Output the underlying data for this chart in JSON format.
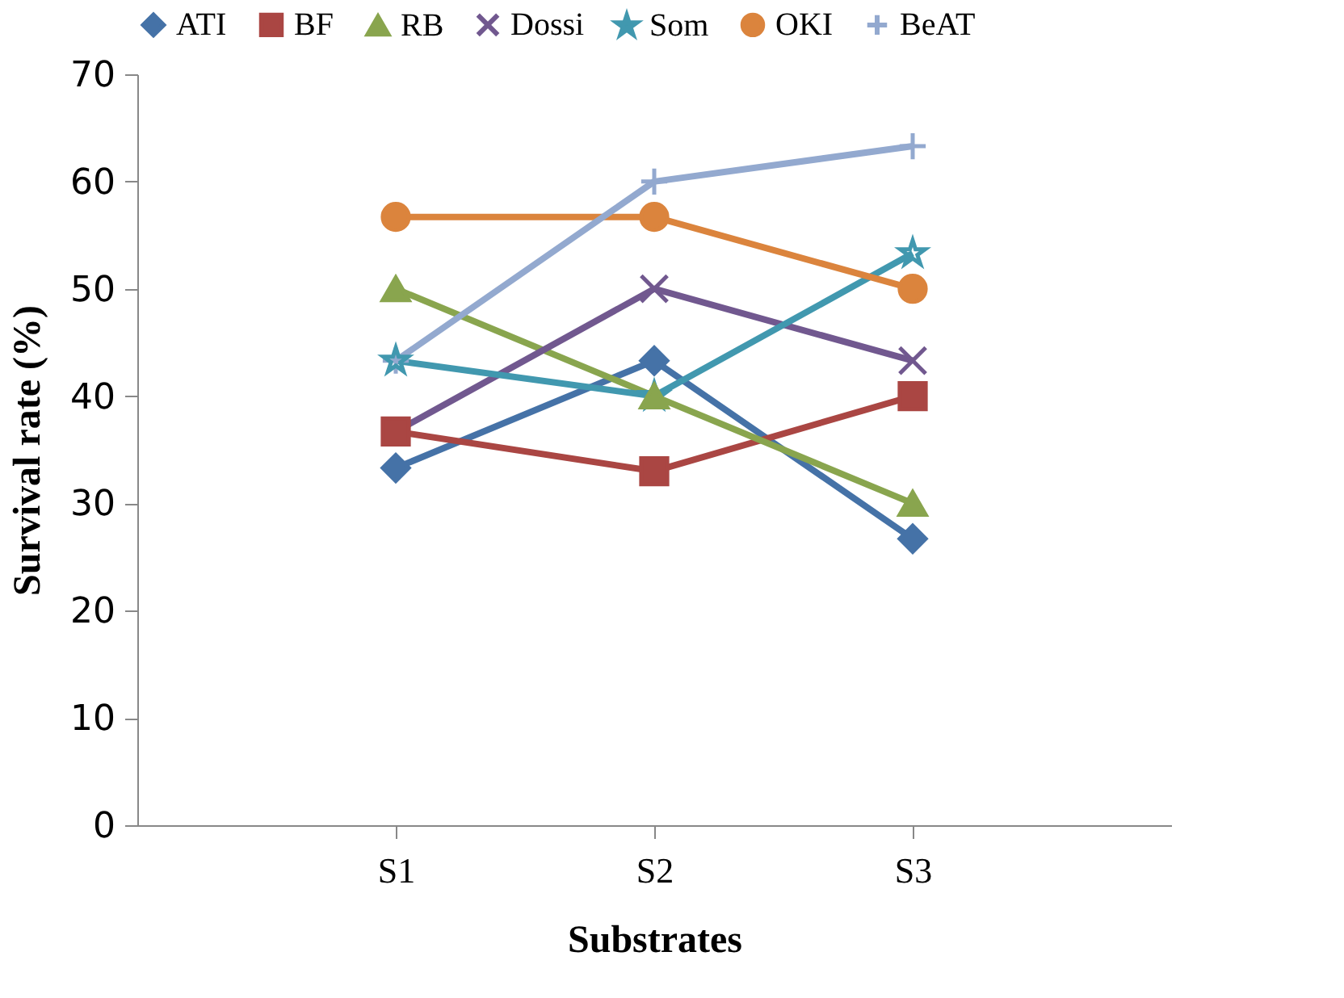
{
  "chart_data": {
    "type": "line",
    "xlabel": "Substrates",
    "ylabel": "Survival rate (%)",
    "categories": [
      "S1",
      "S2",
      "S3"
    ],
    "series": [
      {
        "name": "ATI",
        "color": "#4572a7",
        "marker": "diamond",
        "values": [
          33.3,
          43.3,
          26.7
        ]
      },
      {
        "name": "BF",
        "color": "#aa4643",
        "marker": "square",
        "values": [
          36.7,
          33,
          40
        ]
      },
      {
        "name": "RB",
        "color": "#89a54e",
        "marker": "triangle",
        "values": [
          50,
          40,
          30
        ]
      },
      {
        "name": "Dossi",
        "color": "#71588f",
        "marker": "cross",
        "values": [
          36.7,
          50,
          43.3
        ]
      },
      {
        "name": "Som",
        "color": "#4198af",
        "marker": "star",
        "values": [
          43.3,
          40,
          53.3
        ]
      },
      {
        "name": "OKI",
        "color": "#db843d",
        "marker": "circle",
        "values": [
          56.7,
          56.7,
          50
        ]
      },
      {
        "name": "BeAT",
        "color": "#93a9cf",
        "marker": "plus",
        "values": [
          43.3,
          60,
          63.3
        ]
      }
    ],
    "ylim": [
      0,
      70
    ],
    "yticks": [
      0,
      10,
      20,
      30,
      40,
      50,
      60,
      70
    ],
    "grid": false,
    "legend": "top"
  }
}
